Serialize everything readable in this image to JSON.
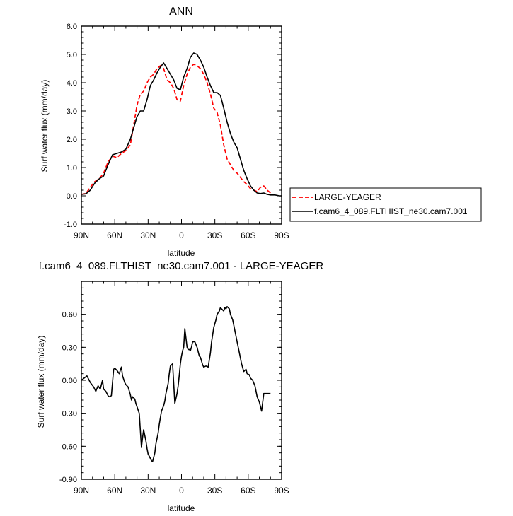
{
  "chart_data": [
    {
      "type": "line",
      "title": "ANN",
      "xlabel": "latitude",
      "ylabel": "Surf water flux (mm/day)",
      "xlim": [
        90,
        -90
      ],
      "ylim": [
        -1.0,
        6.0
      ],
      "x_ticks": [
        90,
        60,
        30,
        0,
        -30,
        -60,
        -90
      ],
      "x_tick_labels": [
        "90N",
        "60N",
        "30N",
        "0",
        "30S",
        "60S",
        "90S"
      ],
      "y_ticks": [
        -1,
        0,
        1,
        2,
        3,
        4,
        5,
        6
      ],
      "y_tick_labels": [
        "-1.0",
        "0.0",
        "1.0",
        "2.0",
        "3.0",
        "4.0",
        "5.0",
        "6.0"
      ],
      "grid": false,
      "legend_position": "right",
      "series": [
        {
          "name": "LARGE-YEAGER",
          "color": "#ff0000",
          "dash": "dashed",
          "x": [
            90,
            86,
            82,
            78,
            74,
            70,
            66,
            62,
            58,
            54,
            50,
            46,
            43,
            40,
            37,
            34,
            31,
            28,
            25,
            22,
            19,
            16,
            13,
            10,
            7,
            4,
            1,
            -2,
            -5,
            -8,
            -11,
            -14,
            -17,
            -20,
            -23,
            -26,
            -29,
            -32,
            -35,
            -38,
            -41,
            -44,
            -47,
            -50,
            -53,
            -56,
            -59,
            -62,
            -65,
            -68,
            -71,
            -74,
            -77,
            -80
          ],
          "values": [
            0.05,
            0.08,
            0.3,
            0.5,
            0.6,
            0.8,
            1.2,
            1.4,
            1.35,
            1.5,
            1.6,
            1.8,
            2.5,
            3.2,
            3.6,
            3.7,
            4.0,
            4.2,
            4.3,
            4.5,
            4.6,
            4.5,
            4.1,
            4.0,
            3.8,
            3.4,
            3.35,
            3.9,
            4.3,
            4.55,
            4.65,
            4.6,
            4.5,
            4.3,
            4.0,
            3.6,
            3.1,
            2.95,
            2.5,
            1.8,
            1.3,
            1.1,
            0.9,
            0.8,
            0.65,
            0.5,
            0.4,
            0.25,
            0.2,
            0.15,
            0.3,
            0.35,
            0.2,
            0.1
          ]
        },
        {
          "name": "f.cam6_4_089.FLTHIST_ne30.cam7.001",
          "color": "#000000",
          "dash": "solid",
          "x": [
            90,
            86,
            82,
            78,
            74,
            70,
            66,
            62,
            58,
            54,
            50,
            46,
            43,
            40,
            37,
            34,
            31,
            28,
            25,
            22,
            19,
            16,
            13,
            10,
            7,
            4,
            1,
            -2,
            -5,
            -8,
            -11,
            -14,
            -17,
            -20,
            -23,
            -26,
            -29,
            -32,
            -35,
            -38,
            -41,
            -44,
            -47,
            -50,
            -53,
            -56,
            -59,
            -62,
            -65,
            -68,
            -71,
            -74,
            -77,
            -80,
            -84,
            -88,
            -90
          ],
          "values": [
            0.05,
            0.07,
            0.2,
            0.45,
            0.6,
            0.7,
            1.1,
            1.45,
            1.5,
            1.55,
            1.65,
            2.0,
            2.4,
            2.8,
            3.0,
            3.0,
            3.4,
            3.9,
            4.1,
            4.35,
            4.55,
            4.7,
            4.5,
            4.3,
            4.1,
            3.8,
            3.75,
            4.2,
            4.5,
            4.9,
            5.05,
            5.0,
            4.8,
            4.55,
            4.2,
            3.9,
            3.65,
            3.65,
            3.55,
            3.1,
            2.6,
            2.2,
            1.9,
            1.7,
            1.3,
            0.9,
            0.6,
            0.35,
            0.2,
            0.1,
            0.08,
            0.1,
            0.05,
            0.03,
            0.03,
            0.0,
            0.0
          ]
        }
      ]
    },
    {
      "type": "line",
      "title": "f.cam6_4_089.FLTHIST_ne30.cam7.001 - LARGE-YEAGER",
      "xlabel": "latitude",
      "ylabel": "Surf water flux (mm/day)",
      "xlim": [
        90,
        -90
      ],
      "ylim": [
        -0.9,
        0.9
      ],
      "x_ticks": [
        90,
        60,
        30,
        0,
        -30,
        -60,
        -90
      ],
      "x_tick_labels": [
        "90N",
        "60N",
        "30N",
        "0",
        "30S",
        "60S",
        "90S"
      ],
      "y_ticks": [
        -0.9,
        -0.6,
        -0.3,
        0.0,
        0.3,
        0.6
      ],
      "y_tick_labels": [
        "-0.90",
        "-0.60",
        "-0.30",
        "0.00",
        "0.30",
        "0.60"
      ],
      "grid": false,
      "series": [
        {
          "color": "#000000",
          "dash": "solid",
          "x": [
            90,
            85,
            82,
            79,
            77,
            75,
            73,
            71,
            70,
            68,
            66,
            65,
            63,
            61,
            60,
            58,
            56,
            54,
            53,
            51,
            50,
            49,
            48,
            46,
            45,
            44,
            42,
            41,
            40,
            38,
            36,
            35,
            34,
            32,
            31,
            30,
            29,
            27,
            26,
            24,
            23,
            21,
            20,
            18,
            16,
            15,
            14,
            12,
            11,
            10,
            8,
            6,
            4,
            3,
            2,
            1,
            0,
            -1,
            -2,
            -3,
            -5,
            -6,
            -7,
            -8,
            -9,
            -10,
            -12,
            -14,
            -15,
            -16,
            -17,
            -19,
            -20,
            -22,
            -24,
            -26,
            -27,
            -29,
            -31,
            -32,
            -34,
            -35,
            -36,
            -38,
            -39,
            -40,
            -41,
            -43,
            -44,
            -46,
            -47,
            -48,
            -50,
            -52,
            -54,
            -56,
            -58,
            -59,
            -61,
            -62,
            -64,
            -66,
            -68,
            -70,
            -72,
            -74,
            -76,
            -78,
            -79,
            -80
          ],
          "values": [
            0.0,
            0.04,
            -0.02,
            -0.06,
            -0.1,
            -0.05,
            -0.08,
            0.0,
            -0.08,
            -0.1,
            -0.14,
            -0.15,
            -0.14,
            0.1,
            0.11,
            0.09,
            0.06,
            0.12,
            0.04,
            -0.02,
            -0.04,
            -0.05,
            -0.06,
            -0.13,
            -0.18,
            -0.15,
            -0.17,
            -0.21,
            -0.24,
            -0.3,
            -0.61,
            -0.52,
            -0.45,
            -0.55,
            -0.62,
            -0.67,
            -0.69,
            -0.73,
            -0.74,
            -0.66,
            -0.58,
            -0.48,
            -0.4,
            -0.28,
            -0.23,
            -0.19,
            -0.12,
            -0.03,
            0.06,
            0.13,
            0.15,
            -0.21,
            -0.12,
            -0.05,
            0.05,
            0.15,
            0.22,
            0.27,
            0.3,
            0.47,
            0.3,
            0.28,
            0.28,
            0.27,
            0.3,
            0.35,
            0.35,
            0.3,
            0.26,
            0.22,
            0.21,
            0.14,
            0.12,
            0.13,
            0.12,
            0.25,
            0.35,
            0.48,
            0.55,
            0.6,
            0.63,
            0.66,
            0.65,
            0.63,
            0.66,
            0.65,
            0.67,
            0.65,
            0.6,
            0.55,
            0.5,
            0.45,
            0.35,
            0.25,
            0.15,
            0.08,
            0.1,
            0.06,
            0.05,
            0.02,
            0.0,
            -0.05,
            -0.15,
            -0.2,
            -0.28,
            -0.12,
            -0.12,
            -0.12,
            -0.12,
            -0.12
          ]
        }
      ]
    }
  ]
}
